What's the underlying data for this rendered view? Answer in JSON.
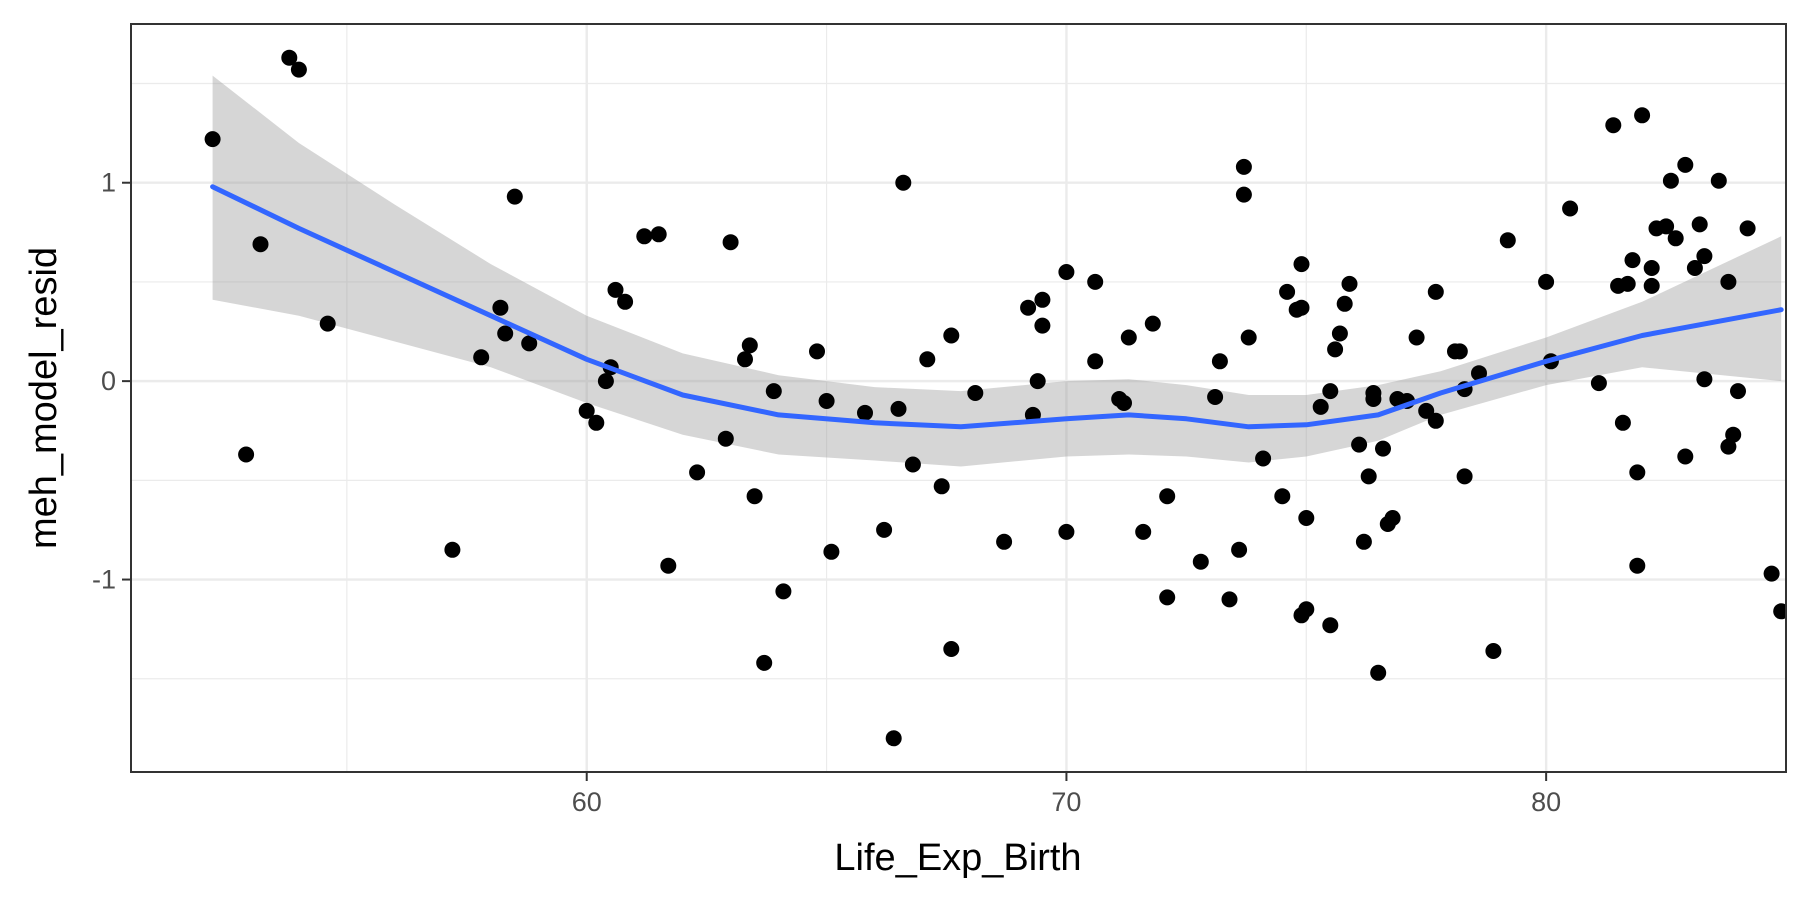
{
  "chart_data": {
    "type": "scatter",
    "title": "",
    "xlabel": "Life_Exp_Birth",
    "ylabel": "meh_model_resid",
    "xlim": [
      50.5,
      85.0
    ],
    "ylim": [
      -1.97,
      1.8
    ],
    "x_ticks": [
      60,
      70,
      80
    ],
    "x_tick_labels": [
      "60",
      "70",
      "80"
    ],
    "x_minor_ticks": [
      55,
      65,
      75,
      85
    ],
    "y_ticks": [
      -1,
      0,
      1
    ],
    "y_tick_labels": [
      "-1",
      "0",
      "1"
    ],
    "y_minor_ticks": [
      -1.5,
      -0.5,
      0.5,
      1.5
    ],
    "grid": true,
    "legend": "none",
    "point_color": "#000000",
    "smooth_color": "#3366FF",
    "band_color": "#999999",
    "points": [
      [
        52.2,
        1.22
      ],
      [
        52.9,
        -0.37
      ],
      [
        53.2,
        0.69
      ],
      [
        53.8,
        1.63
      ],
      [
        54.0,
        1.57
      ],
      [
        54.6,
        0.29
      ],
      [
        57.2,
        -0.85
      ],
      [
        57.8,
        0.12
      ],
      [
        58.2,
        0.37
      ],
      [
        58.3,
        0.24
      ],
      [
        58.5,
        0.93
      ],
      [
        58.8,
        0.19
      ],
      [
        60.0,
        -0.15
      ],
      [
        60.2,
        -0.21
      ],
      [
        60.4,
        0.0
      ],
      [
        60.5,
        0.07
      ],
      [
        60.6,
        0.46
      ],
      [
        60.8,
        0.4
      ],
      [
        61.2,
        0.73
      ],
      [
        61.5,
        0.74
      ],
      [
        61.7,
        -0.93
      ],
      [
        62.3,
        -0.46
      ],
      [
        62.9,
        -0.29
      ],
      [
        63.0,
        0.7
      ],
      [
        63.3,
        0.11
      ],
      [
        63.4,
        0.18
      ],
      [
        63.5,
        -0.58
      ],
      [
        63.7,
        -1.42
      ],
      [
        63.9,
        -0.05
      ],
      [
        64.1,
        -1.06
      ],
      [
        64.8,
        0.15
      ],
      [
        65.0,
        -0.1
      ],
      [
        65.1,
        -0.86
      ],
      [
        65.8,
        -0.16
      ],
      [
        66.2,
        -0.75
      ],
      [
        66.4,
        -1.8
      ],
      [
        66.5,
        -0.14
      ],
      [
        66.6,
        1.0
      ],
      [
        66.8,
        -0.42
      ],
      [
        67.1,
        0.11
      ],
      [
        67.4,
        -0.53
      ],
      [
        67.6,
        0.23
      ],
      [
        67.6,
        -1.35
      ],
      [
        68.1,
        -0.06
      ],
      [
        68.7,
        -0.81
      ],
      [
        69.2,
        0.37
      ],
      [
        69.3,
        -0.17
      ],
      [
        69.4,
        0.0
      ],
      [
        69.5,
        0.41
      ],
      [
        69.5,
        0.28
      ],
      [
        70.0,
        0.55
      ],
      [
        70.0,
        -0.76
      ],
      [
        70.6,
        0.5
      ],
      [
        70.6,
        0.1
      ],
      [
        71.1,
        -0.09
      ],
      [
        71.2,
        -0.11
      ],
      [
        71.3,
        0.22
      ],
      [
        71.6,
        -0.76
      ],
      [
        71.8,
        0.29
      ],
      [
        72.1,
        -0.58
      ],
      [
        72.1,
        -1.09
      ],
      [
        72.8,
        -0.91
      ],
      [
        73.1,
        -0.08
      ],
      [
        73.2,
        0.1
      ],
      [
        73.4,
        -1.1
      ],
      [
        73.6,
        -0.85
      ],
      [
        73.7,
        1.08
      ],
      [
        73.7,
        0.94
      ],
      [
        73.8,
        0.22
      ],
      [
        74.1,
        -0.39
      ],
      [
        74.5,
        -0.58
      ],
      [
        74.6,
        0.45
      ],
      [
        74.8,
        0.36
      ],
      [
        74.9,
        0.59
      ],
      [
        74.9,
        0.37
      ],
      [
        74.9,
        -1.18
      ],
      [
        75.0,
        -1.15
      ],
      [
        75.0,
        -0.69
      ],
      [
        75.3,
        -0.13
      ],
      [
        75.5,
        -0.05
      ],
      [
        75.5,
        -1.23
      ],
      [
        75.6,
        0.16
      ],
      [
        75.7,
        0.24
      ],
      [
        75.8,
        0.39
      ],
      [
        75.9,
        0.49
      ],
      [
        76.1,
        -0.32
      ],
      [
        76.2,
        -0.81
      ],
      [
        76.3,
        -0.48
      ],
      [
        76.4,
        -0.09
      ],
      [
        76.4,
        -0.06
      ],
      [
        76.5,
        -1.47
      ],
      [
        76.6,
        -0.34
      ],
      [
        76.7,
        -0.72
      ],
      [
        76.8,
        -0.69
      ],
      [
        76.9,
        -0.09
      ],
      [
        77.1,
        -0.1
      ],
      [
        77.3,
        0.22
      ],
      [
        77.5,
        -0.15
      ],
      [
        77.7,
        -0.2
      ],
      [
        77.7,
        0.45
      ],
      [
        78.1,
        0.15
      ],
      [
        78.2,
        0.15
      ],
      [
        78.3,
        -0.04
      ],
      [
        78.3,
        -0.48
      ],
      [
        78.6,
        0.04
      ],
      [
        78.9,
        -1.36
      ],
      [
        79.2,
        0.71
      ],
      [
        80.0,
        0.5
      ],
      [
        80.1,
        0.1
      ],
      [
        80.5,
        0.87
      ],
      [
        81.1,
        -0.01
      ],
      [
        81.4,
        1.29
      ],
      [
        81.5,
        0.48
      ],
      [
        81.6,
        -0.21
      ],
      [
        81.7,
        0.49
      ],
      [
        81.8,
        0.61
      ],
      [
        81.9,
        -0.46
      ],
      [
        81.9,
        -0.93
      ],
      [
        82.0,
        1.34
      ],
      [
        82.2,
        0.57
      ],
      [
        82.2,
        0.48
      ],
      [
        82.3,
        0.77
      ],
      [
        82.5,
        0.78
      ],
      [
        82.6,
        1.01
      ],
      [
        82.7,
        0.72
      ],
      [
        82.9,
        -0.38
      ],
      [
        82.9,
        1.09
      ],
      [
        83.1,
        0.57
      ],
      [
        83.2,
        0.79
      ],
      [
        83.3,
        0.63
      ],
      [
        83.3,
        0.01
      ],
      [
        83.6,
        1.01
      ],
      [
        83.8,
        0.5
      ],
      [
        83.8,
        -0.33
      ],
      [
        83.9,
        -0.27
      ],
      [
        84.0,
        -0.05
      ],
      [
        84.2,
        0.77
      ],
      [
        84.7,
        -0.97
      ],
      [
        84.9,
        -1.16
      ]
    ],
    "smooth": [
      [
        52.2,
        0.98
      ],
      [
        54.0,
        0.77
      ],
      [
        56.0,
        0.55
      ],
      [
        58.0,
        0.33
      ],
      [
        60.0,
        0.11
      ],
      [
        62.0,
        -0.07
      ],
      [
        64.0,
        -0.17
      ],
      [
        66.0,
        -0.21
      ],
      [
        67.8,
        -0.23
      ],
      [
        70.0,
        -0.19
      ],
      [
        71.3,
        -0.17
      ],
      [
        72.5,
        -0.19
      ],
      [
        73.8,
        -0.23
      ],
      [
        75.0,
        -0.22
      ],
      [
        76.5,
        -0.17
      ],
      [
        77.8,
        -0.06
      ],
      [
        80.0,
        0.1
      ],
      [
        82.0,
        0.23
      ],
      [
        84.9,
        0.36
      ]
    ],
    "band_upper": [
      [
        52.2,
        1.54
      ],
      [
        54.0,
        1.2
      ],
      [
        56.0,
        0.89
      ],
      [
        58.0,
        0.59
      ],
      [
        60.0,
        0.33
      ],
      [
        62.0,
        0.14
      ],
      [
        64.0,
        0.03
      ],
      [
        66.0,
        -0.03
      ],
      [
        67.8,
        -0.05
      ],
      [
        70.0,
        0.0
      ],
      [
        71.3,
        0.01
      ],
      [
        72.5,
        -0.02
      ],
      [
        73.8,
        -0.07
      ],
      [
        75.0,
        -0.07
      ],
      [
        76.5,
        -0.02
      ],
      [
        77.8,
        0.05
      ],
      [
        80.0,
        0.22
      ],
      [
        82.0,
        0.4
      ],
      [
        84.9,
        0.73
      ]
    ],
    "band_lower": [
      [
        52.2,
        0.41
      ],
      [
        54.0,
        0.33
      ],
      [
        56.0,
        0.2
      ],
      [
        58.0,
        0.07
      ],
      [
        60.0,
        -0.11
      ],
      [
        62.0,
        -0.27
      ],
      [
        64.0,
        -0.37
      ],
      [
        66.0,
        -0.4
      ],
      [
        67.8,
        -0.43
      ],
      [
        70.0,
        -0.38
      ],
      [
        71.3,
        -0.37
      ],
      [
        72.5,
        -0.38
      ],
      [
        73.8,
        -0.41
      ],
      [
        75.0,
        -0.38
      ],
      [
        76.5,
        -0.3
      ],
      [
        77.8,
        -0.17
      ],
      [
        80.0,
        -0.02
      ],
      [
        82.0,
        0.07
      ],
      [
        84.9,
        0.0
      ]
    ]
  }
}
